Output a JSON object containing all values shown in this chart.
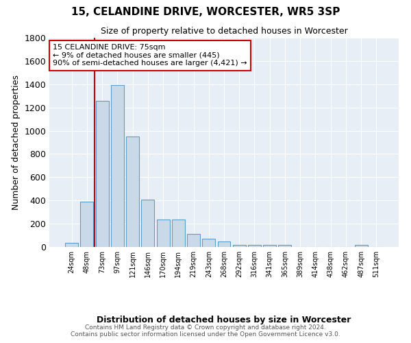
{
  "title": "15, CELANDINE DRIVE, WORCESTER, WR5 3SP",
  "subtitle": "Size of property relative to detached houses in Worcester",
  "xlabel": "Distribution of detached houses by size in Worcester",
  "ylabel": "Number of detached properties",
  "footnote1": "Contains HM Land Registry data © Crown copyright and database right 2024.",
  "footnote2": "Contains public sector information licensed under the Open Government Licence v3.0.",
  "categories": [
    "24sqm",
    "48sqm",
    "73sqm",
    "97sqm",
    "121sqm",
    "146sqm",
    "170sqm",
    "194sqm",
    "219sqm",
    "243sqm",
    "268sqm",
    "292sqm",
    "316sqm",
    "341sqm",
    "365sqm",
    "389sqm",
    "414sqm",
    "438sqm",
    "462sqm",
    "487sqm",
    "511sqm"
  ],
  "bar_values": [
    35,
    390,
    1260,
    1395,
    950,
    410,
    235,
    235,
    115,
    70,
    45,
    18,
    18,
    18,
    18,
    0,
    0,
    0,
    0,
    18,
    0
  ],
  "bar_color": "#c9d9e8",
  "bar_edge_color": "#5a9ec9",
  "red_line_index": 2,
  "ylim": [
    0,
    1800
  ],
  "yticks": [
    0,
    200,
    400,
    600,
    800,
    1000,
    1200,
    1400,
    1600,
    1800
  ],
  "annotation_title": "15 CELANDINE DRIVE: 75sqm",
  "annotation_line1": "← 9% of detached houses are smaller (445)",
  "annotation_line2": "90% of semi-detached houses are larger (4,421) →",
  "annotation_box_color": "#ffffff",
  "annotation_box_edge": "#cc0000",
  "property_line_color": "#cc0000",
  "bg_color": "#e8eef5"
}
